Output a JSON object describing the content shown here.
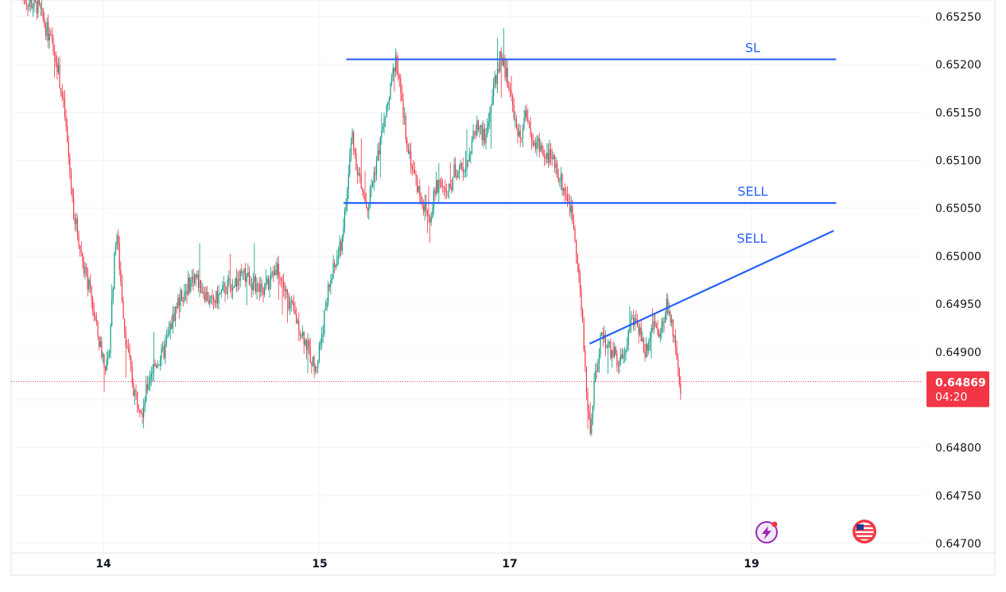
{
  "chart_data": {
    "type": "candlestick",
    "x_axis": {
      "tick_labels": [
        "14",
        "15",
        "17",
        "19"
      ]
    },
    "y_axis": {
      "range": [
        0.64695,
        0.65265
      ],
      "tick_values": [
        0.6525,
        0.652,
        0.6515,
        0.651,
        0.6505,
        0.65,
        0.6495,
        0.649,
        0.6485,
        0.648,
        0.6475,
        0.647
      ],
      "tick_labels": [
        "0.65250",
        "0.65200",
        "0.65150",
        "0.65100",
        "0.65050",
        "0.65000",
        "0.64950",
        "0.64900",
        "0.64850",
        "0.64800",
        "0.64750",
        "0.64700"
      ],
      "position": "right"
    },
    "grid": true,
    "current_price": {
      "value": 0.64869,
      "label": "0.64869",
      "countdown": "04:20",
      "color": "#f23645"
    },
    "colors": {
      "up": "#089981",
      "down": "#f23645",
      "drawing": "#2962ff"
    },
    "price_path": {
      "description_keys": "t = fractional day position along the x axis (14 = day 14 tick); price in quote units",
      "points": [
        [
          13.62,
          0.6527
        ],
        [
          13.7,
          0.6526
        ],
        [
          13.78,
          0.6521
        ],
        [
          13.82,
          0.6515
        ],
        [
          13.86,
          0.6505
        ],
        [
          13.9,
          0.65
        ],
        [
          13.94,
          0.6496
        ],
        [
          13.98,
          0.6491
        ],
        [
          14.02,
          0.6488
        ],
        [
          14.06,
          0.6503
        ],
        [
          14.1,
          0.6492
        ],
        [
          14.14,
          0.6486
        ],
        [
          14.18,
          0.6484
        ],
        [
          14.22,
          0.6488
        ],
        [
          14.28,
          0.649
        ],
        [
          14.34,
          0.6495
        ],
        [
          14.42,
          0.6498
        ],
        [
          14.5,
          0.6495
        ],
        [
          14.58,
          0.6497
        ],
        [
          14.66,
          0.6498
        ],
        [
          14.74,
          0.6496
        ],
        [
          14.8,
          0.6499
        ],
        [
          14.86,
          0.6495
        ],
        [
          14.92,
          0.6492
        ],
        [
          14.98,
          0.6488
        ],
        [
          15.04,
          0.6493
        ],
        [
          15.1,
          0.6497
        ],
        [
          15.16,
          0.6499
        ],
        [
          15.22,
          0.6501
        ],
        [
          15.26,
          0.6504
        ],
        [
          15.3,
          0.6508
        ],
        [
          15.34,
          0.6513
        ],
        [
          15.38,
          0.651
        ],
        [
          15.44,
          0.6507
        ],
        [
          15.5,
          0.6505
        ],
        [
          15.58,
          0.6509
        ],
        [
          15.66,
          0.6513
        ],
        [
          15.74,
          0.6517
        ],
        [
          15.8,
          0.6521
        ],
        [
          15.86,
          0.6516
        ],
        [
          15.92,
          0.6512
        ],
        [
          15.98,
          0.6509
        ],
        [
          16.04,
          0.6507
        ],
        [
          16.1,
          0.6505
        ],
        [
          16.16,
          0.6504
        ],
        [
          16.22,
          0.6507
        ],
        [
          16.28,
          0.6508
        ],
        [
          16.34,
          0.6506
        ],
        [
          16.42,
          0.6509
        ],
        [
          16.5,
          0.6509
        ],
        [
          16.58,
          0.6511
        ],
        [
          16.66,
          0.6514
        ],
        [
          16.74,
          0.6512
        ],
        [
          16.82,
          0.6517
        ],
        [
          16.9,
          0.6521
        ],
        [
          16.96,
          0.6519
        ],
        [
          17.02,
          0.6516
        ],
        [
          17.08,
          0.6512
        ],
        [
          17.14,
          0.6515
        ],
        [
          17.2,
          0.6512
        ],
        [
          17.28,
          0.6511
        ],
        [
          17.36,
          0.651
        ],
        [
          17.42,
          0.6508
        ],
        [
          17.48,
          0.6506
        ],
        [
          17.52,
          0.6504
        ],
        [
          17.56,
          0.65
        ],
        [
          17.6,
          0.6493
        ],
        [
          17.64,
          0.6485
        ],
        [
          17.67,
          0.6481
        ],
        [
          17.7,
          0.6487
        ],
        [
          17.76,
          0.6492
        ],
        [
          17.84,
          0.649
        ],
        [
          17.92,
          0.6489
        ],
        [
          18.0,
          0.6493
        ],
        [
          18.06,
          0.6493
        ],
        [
          18.12,
          0.649
        ],
        [
          18.18,
          0.6493
        ],
        [
          18.24,
          0.6491
        ],
        [
          18.3,
          0.6495
        ],
        [
          18.34,
          0.6493
        ],
        [
          18.38,
          0.6489
        ],
        [
          18.42,
          0.6484
        ]
      ]
    },
    "drawings": [
      {
        "label": "SL",
        "kind": "horizontal",
        "price": 0.652055,
        "t_start": 15.28,
        "t_end": 19.7
      },
      {
        "label": "SELL",
        "kind": "horizontal",
        "price": 0.650555,
        "t_start": 15.25,
        "t_end": 19.7
      },
      {
        "label": "SELL",
        "kind": "trendline",
        "p1": [
          17.66,
          0.649085
        ],
        "p2": [
          19.68,
          0.650265
        ]
      }
    ],
    "icons": [
      "lightning-icon",
      "us-flag-icon"
    ]
  }
}
